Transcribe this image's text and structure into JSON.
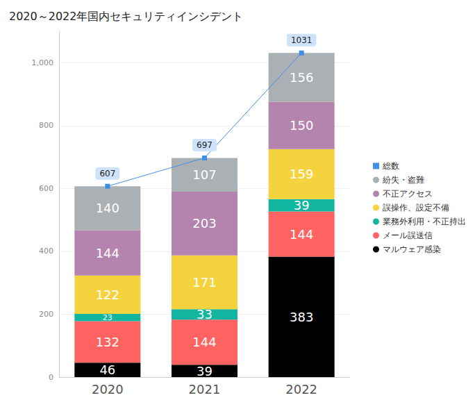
{
  "chart_data": {
    "type": "bar",
    "title": "2020～2022年国内セキュリティインシデント",
    "categories": [
      "2020",
      "2021",
      "2022"
    ],
    "stacked": true,
    "data_labels": true,
    "grid": true,
    "legend": "right",
    "ylim": [
      0,
      1100
    ],
    "yticks": [
      0,
      200,
      400,
      600,
      800,
      {
        "value": 1000,
        "label": "1,000"
      }
    ],
    "series": [
      {
        "name": "マルウェア感染",
        "color": "#000000",
        "values": [
          46,
          39,
          383
        ]
      },
      {
        "name": "メール誤送信",
        "color": "#ff6361",
        "values": [
          132,
          144,
          144
        ]
      },
      {
        "name": "業務外利用・不正持出",
        "color": "#12b5a0",
        "values": [
          23,
          33,
          39
        ]
      },
      {
        "name": "誤操作、設定不備",
        "color": "#f5d33f",
        "values": [
          122,
          171,
          159
        ]
      },
      {
        "name": "不正アクセス",
        "color": "#b584ae",
        "values": [
          144,
          203,
          150
        ]
      },
      {
        "name": "紛失・盗難",
        "color": "#aab0b3",
        "values": [
          140,
          107,
          156
        ]
      },
      {
        "name": "総数",
        "color": "#3d8fe8",
        "type": "line",
        "marker": "square",
        "values": [
          607,
          697,
          1031
        ]
      }
    ]
  }
}
